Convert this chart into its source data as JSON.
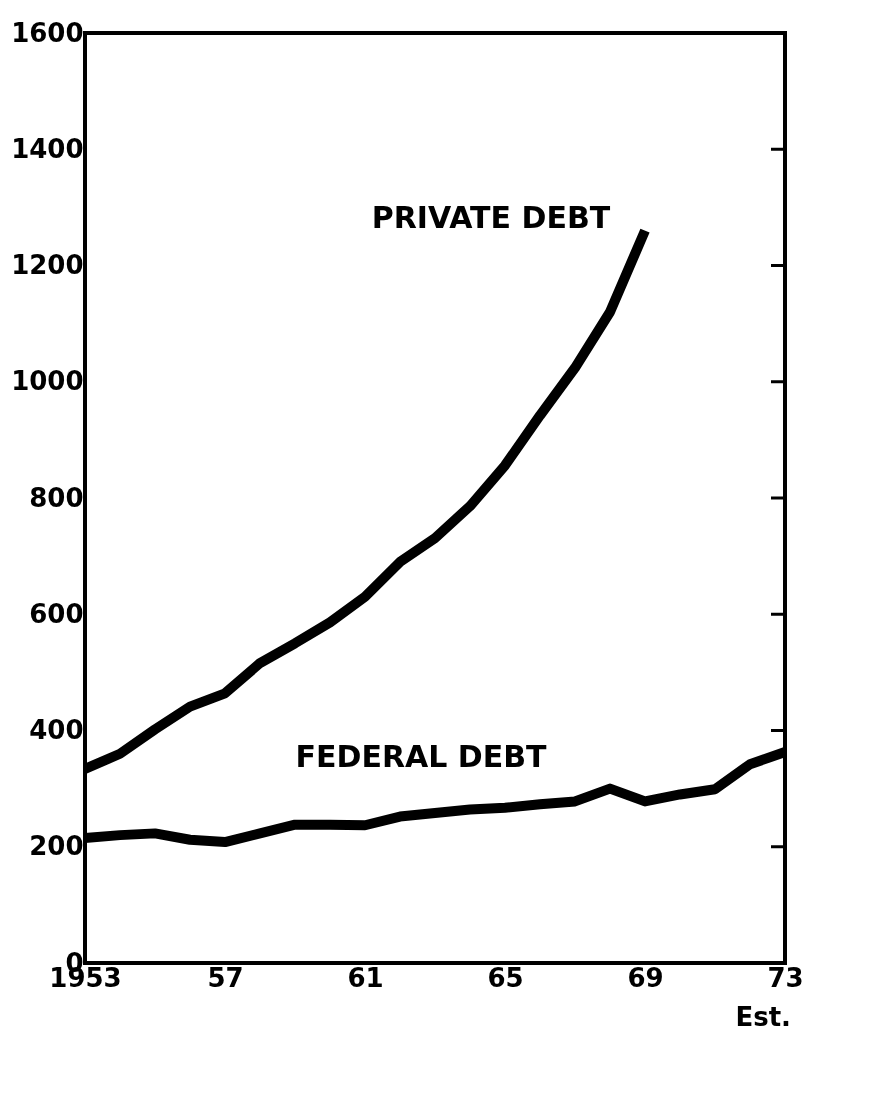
{
  "chart_data": {
    "type": "line",
    "x": [
      1953,
      1954,
      1955,
      1956,
      1957,
      1958,
      1959,
      1960,
      1961,
      1962,
      1963,
      1964,
      1965,
      1966,
      1967,
      1968,
      1969,
      1970,
      1971,
      1972,
      1973
    ],
    "series": [
      {
        "name": "PRIVATE DEBT",
        "color": "#000000",
        "x": [
          1953,
          1954,
          1955,
          1956,
          1957,
          1958,
          1959,
          1960,
          1961,
          1962,
          1963,
          1964,
          1965,
          1966,
          1967,
          1968,
          1969
        ],
        "values": [
          334,
          360,
          402,
          441,
          464,
          516,
          550,
          586,
          630,
          690,
          731,
          786,
          856,
          942,
          1024,
          1120,
          1260
        ]
      },
      {
        "name": "FEDERAL DEBT",
        "color": "#000000",
        "values": [
          215,
          220,
          223,
          212,
          208,
          223,
          238,
          238,
          237,
          252,
          258,
          264,
          267,
          273,
          278,
          300,
          278,
          290,
          299,
          342,
          363
        ]
      }
    ],
    "xlim": [
      1953,
      1973
    ],
    "xticks": [
      1953,
      {
        "value": 1957,
        "label": "57"
      },
      {
        "value": 1961,
        "label": "61"
      },
      {
        "value": 1965,
        "label": "65"
      },
      {
        "value": 1969,
        "label": "69"
      },
      {
        "value": 1973,
        "label": "73"
      }
    ],
    "ylim": [
      0,
      1600
    ],
    "yticks": [
      0,
      200,
      400,
      600,
      800,
      1000,
      1200,
      1400,
      1600
    ],
    "annotations": [
      "Est."
    ],
    "grid": false,
    "marker": "none",
    "line_style": "solid"
  }
}
